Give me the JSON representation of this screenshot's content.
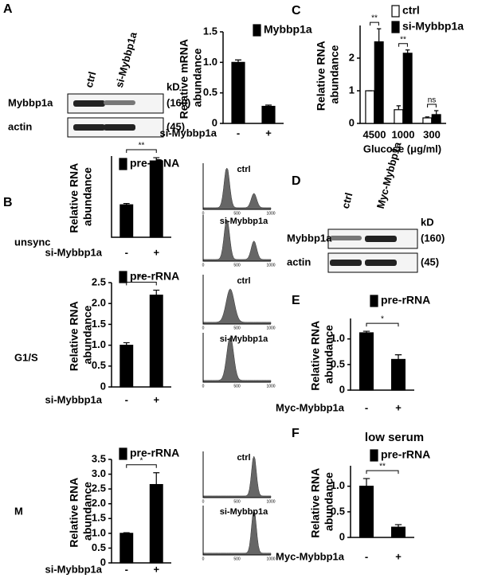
{
  "panels": [
    "A",
    "B",
    "C",
    "D",
    "E",
    "F"
  ],
  "blots": [
    {
      "lanes": [
        "ctrl",
        "si-Mybbp1a"
      ],
      "unit": "kD",
      "bands": [
        {
          "name": "Mybbp1a",
          "size": "(160)"
        },
        {
          "name": "actin",
          "size": "(45)"
        }
      ]
    },
    {
      "lanes": [
        "ctrl",
        "Myc-Mybbp1a"
      ],
      "unit": "kD",
      "bands": [
        {
          "name": "Mybbp1a",
          "size": "(160)"
        },
        {
          "name": "actin",
          "size": "(45)"
        }
      ]
    }
  ],
  "row_labels": [
    "unsync",
    "G1/S",
    "M"
  ],
  "histograms": {
    "labels": [
      "ctrl",
      "si-Mybbp1a"
    ],
    "x_tick_labels": [
      "0",
      "500",
      "1000"
    ]
  },
  "chart_data": [
    {
      "type": "bar",
      "y_label": "Relative mRNA abundance",
      "x_label": "si-Mybbp1a",
      "categories": [
        "-",
        "+"
      ],
      "series": [
        {
          "name": "Mybbp1a",
          "color": "#000000",
          "values": [
            1.0,
            0.28
          ],
          "errors": [
            0.04,
            0.02
          ]
        }
      ],
      "ylim": [
        0,
        1.5
      ],
      "yticks": [
        0,
        0.5,
        {
          "value": 1,
          "label": "1.0"
        },
        1.5
      ]
    },
    {
      "type": "bar",
      "y_label": "Relative RNA abundance",
      "x_label": "Glucose (μg/ml)",
      "categories": [
        "4500",
        "1000",
        "300"
      ],
      "series": [
        {
          "name": "ctrl",
          "color": "#ffffff",
          "values": [
            1.0,
            0.42,
            0.17
          ],
          "errors": [
            0,
            0.12,
            0.03
          ]
        },
        {
          "name": "si-Mybbp1a",
          "color": "#000000",
          "values": [
            2.5,
            2.15,
            0.27
          ],
          "errors": [
            0.4,
            0.1,
            0.12
          ]
        }
      ],
      "ylim": [
        0,
        3
      ],
      "yticks": [
        0,
        1,
        2
      ],
      "significance": [
        "**",
        "**",
        "ns"
      ]
    },
    {
      "type": "bar",
      "y_label": "Relative RNA abundance",
      "x_label": "si-Mybbp1a",
      "categories": [
        "-",
        "+"
      ],
      "series": [
        {
          "name": "pre-rRNA",
          "color": "#000000",
          "values": [
            1.0,
            2.35
          ],
          "errors": [
            0.04,
            0.1
          ]
        }
      ],
      "ylim": [
        0,
        2.5
      ],
      "significance": [
        "**"
      ]
    },
    {
      "type": "bar",
      "y_label": "Relative RNA abundance",
      "x_label": "si-Mybbp1a",
      "categories": [
        "-",
        "+"
      ],
      "series": [
        {
          "name": "pre-rRNA",
          "color": "#000000",
          "values": [
            1.0,
            2.2
          ],
          "errors": [
            0.06,
            0.12
          ]
        }
      ],
      "ylim": [
        0,
        2.5
      ],
      "yticks": [
        0,
        0.5,
        {
          "value": 1,
          "label": "1.0"
        },
        1.5,
        {
          "value": 2,
          "label": "2.0"
        },
        2.5
      ],
      "significance": [
        "**"
      ]
    },
    {
      "type": "bar",
      "y_label": "Relative RNA abundance",
      "x_label": "si-Mybbp1a",
      "categories": [
        "-",
        "+"
      ],
      "series": [
        {
          "name": "pre-rRNA",
          "color": "#000000",
          "values": [
            1.0,
            2.65
          ],
          "errors": [
            0.02,
            0.4
          ]
        }
      ],
      "ylim": [
        0,
        3.5
      ],
      "yticks": [
        0,
        0.5,
        {
          "value": 1,
          "label": "1.0"
        },
        1.5,
        {
          "value": 2,
          "label": "2.0"
        },
        2.5,
        {
          "value": 3,
          "label": "3.0"
        },
        3.5
      ],
      "significance": [
        "*"
      ]
    },
    {
      "type": "bar",
      "y_label": "Relative RNA abundance",
      "x_label": "Myc-Mybbp1a",
      "categories": [
        "-",
        "+"
      ],
      "series": [
        {
          "name": "pre-rRNA",
          "color": "#000000",
          "values": [
            1.12,
            0.6
          ],
          "errors": [
            0.03,
            0.09
          ]
        }
      ],
      "ylim": [
        0,
        1.4
      ],
      "yticks": [
        0,
        0.5,
        {
          "value": 1,
          "label": "1.0"
        }
      ],
      "significance": [
        "*"
      ]
    },
    {
      "type": "bar",
      "title": "low serum",
      "y_label": "Relative RNA abundance",
      "x_label": "Myc-Mybbp1a",
      "categories": [
        "-",
        "+"
      ],
      "series": [
        {
          "name": "pre-rRNA",
          "color": "#000000",
          "values": [
            1.0,
            0.2
          ],
          "errors": [
            0.15,
            0.05
          ]
        }
      ],
      "ylim": [
        0,
        1.4
      ],
      "yticks": [
        0,
        0.5,
        {
          "value": 1,
          "label": "1.0"
        }
      ],
      "significance": [
        "**"
      ]
    }
  ]
}
